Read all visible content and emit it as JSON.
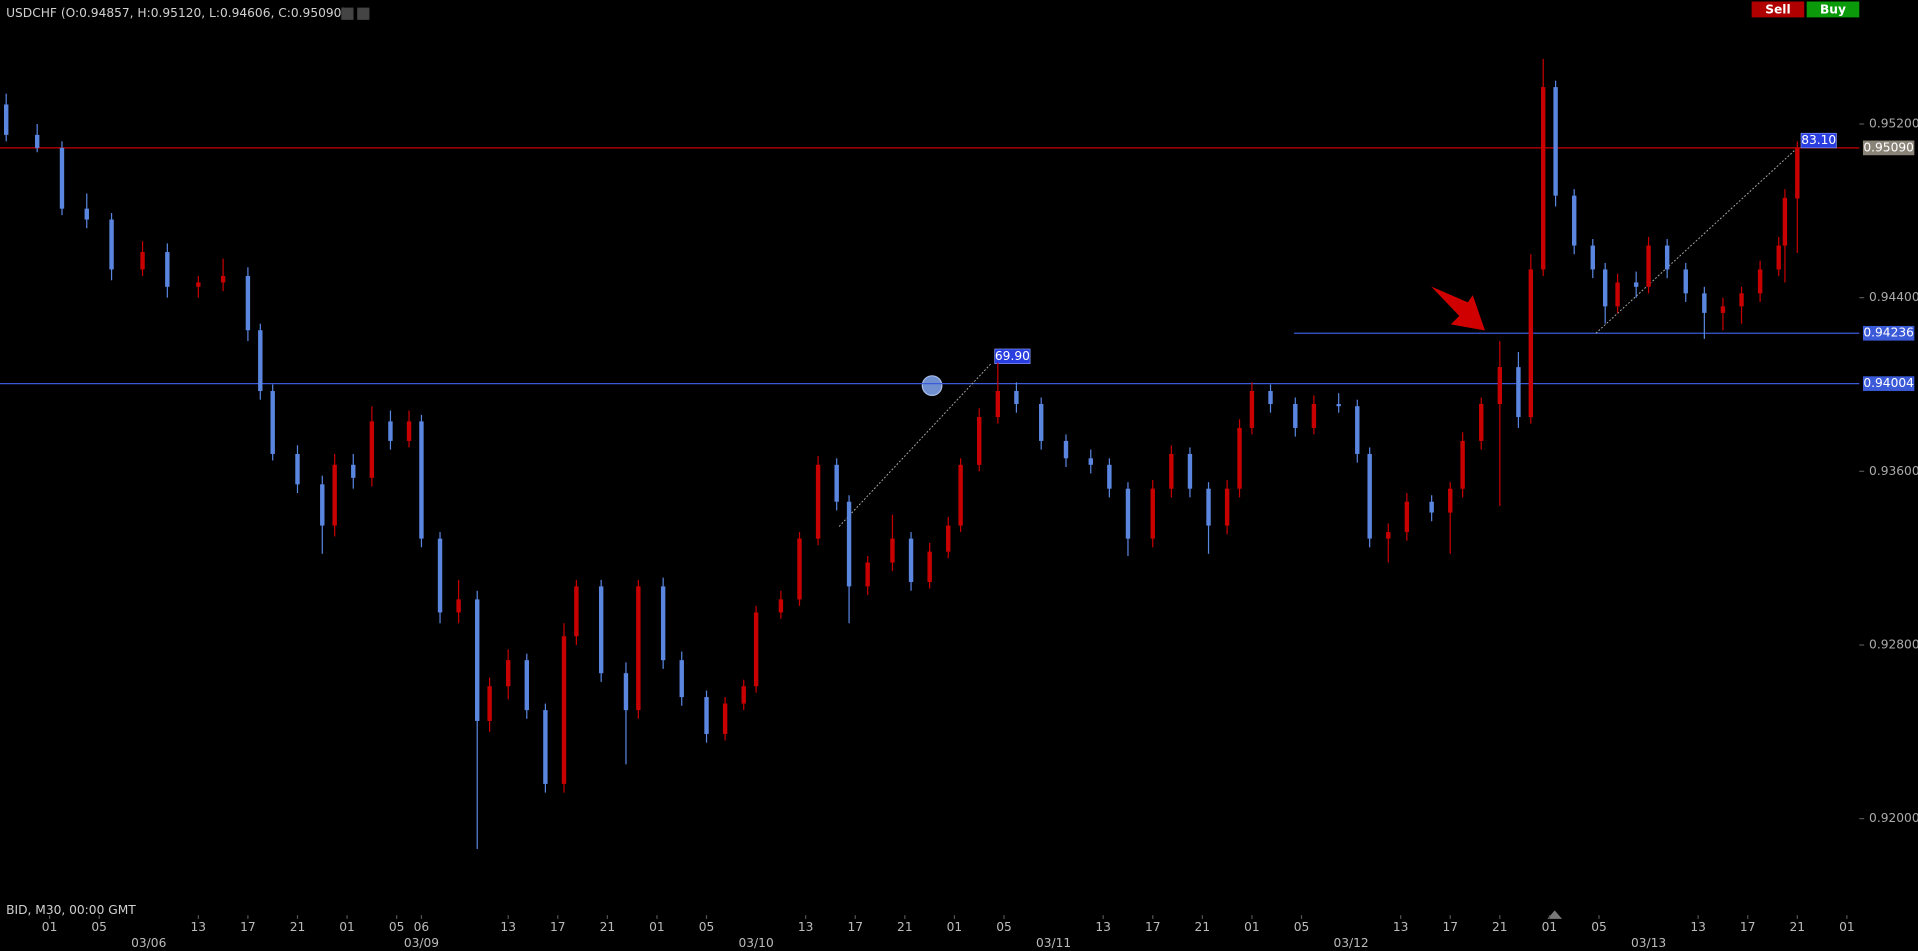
{
  "toolbar": {
    "sell": "Sell",
    "buy": "Buy"
  },
  "chart_data": {
    "type": "candlestick",
    "title": "USDCHF (O:0.94857, H:0.95120, L:0.94606, C:0.95090)",
    "subtitle": "BID, M30, 00:00 GMT",
    "up_color": "#c80000",
    "down_color": "#5a86e0",
    "xlim": [
      0,
      300
    ],
    "ylim": [
      0.916,
      0.9577
    ],
    "yticks": [
      {
        "value": 0.952,
        "label": "0.95200"
      },
      {
        "value": 0.944,
        "label": "0.94400"
      },
      {
        "value": 0.936,
        "label": "0.93600"
      },
      {
        "value": 0.928,
        "label": "0.92800"
      },
      {
        "value": 0.92,
        "label": "0.92000"
      }
    ],
    "xticks": [
      {
        "value": 8,
        "label": "01"
      },
      {
        "value": 16,
        "label": "05"
      },
      {
        "value": 32,
        "label": "13"
      },
      {
        "value": 40,
        "label": "17"
      },
      {
        "value": 48,
        "label": "21"
      },
      {
        "value": 56,
        "label": "01"
      },
      {
        "value": 64,
        "label": "05"
      },
      {
        "value": 68,
        "label": "06"
      },
      {
        "value": 82,
        "label": "13"
      },
      {
        "value": 90,
        "label": "17"
      },
      {
        "value": 98,
        "label": "21"
      },
      {
        "value": 106,
        "label": "01"
      },
      {
        "value": 114,
        "label": "05"
      },
      {
        "value": 130,
        "label": "13"
      },
      {
        "value": 138,
        "label": "17"
      },
      {
        "value": 146,
        "label": "21"
      },
      {
        "value": 154,
        "label": "01"
      },
      {
        "value": 162,
        "label": "05"
      },
      {
        "value": 178,
        "label": "13"
      },
      {
        "value": 186,
        "label": "17"
      },
      {
        "value": 194,
        "label": "21"
      },
      {
        "value": 202,
        "label": "01"
      },
      {
        "value": 210,
        "label": "05"
      },
      {
        "value": 226,
        "label": "13"
      },
      {
        "value": 234,
        "label": "17"
      },
      {
        "value": 242,
        "label": "21"
      },
      {
        "value": 250,
        "label": "01"
      },
      {
        "value": 258,
        "label": "05"
      },
      {
        "value": 274,
        "label": "13"
      },
      {
        "value": 282,
        "label": "17"
      },
      {
        "value": 290,
        "label": "21"
      },
      {
        "value": 298,
        "label": "01"
      }
    ],
    "date_ticks": [
      {
        "value": 24,
        "label": "03/06"
      },
      {
        "value": 68,
        "label": "03/09"
      },
      {
        "value": 122,
        "label": "03/10"
      },
      {
        "value": 170,
        "label": "03/11"
      },
      {
        "value": 218,
        "label": "03/12"
      },
      {
        "value": 266,
        "label": "03/13"
      }
    ],
    "levels": [
      {
        "value": 0.9509,
        "label": "0.95090",
        "color": "#c80000",
        "label_color": "#8a8378"
      },
      {
        "value": 0.94236,
        "label": "0.94236",
        "color": "#3a5ad8",
        "label_color": "#3a5ad8",
        "x_start": 208.8
      },
      {
        "value": 0.94004,
        "label": "0.94004",
        "color": "#3a5ad8",
        "label_color": "#3a5ad8"
      }
    ],
    "trendlines": [
      {
        "x": [
          135.4,
          159.9
        ],
        "y": [
          0.93346,
          0.94096
        ],
        "label": "69.90"
      },
      {
        "x": [
          257.5,
          290
        ],
        "y": [
          0.94236,
          0.9509
        ],
        "label": "83.10"
      }
    ],
    "candles": [
      [
        1,
        0.9529,
        0.9534,
        0.9512,
        0.9515
      ],
      [
        6,
        0.9515,
        0.952,
        0.9507,
        0.9509
      ],
      [
        10,
        0.9509,
        0.9512,
        0.9478,
        0.9481
      ],
      [
        14,
        0.9481,
        0.9488,
        0.9472,
        0.9476
      ],
      [
        18,
        0.9476,
        0.9479,
        0.9448,
        0.9453
      ],
      [
        23,
        0.9453,
        0.9466,
        0.945,
        0.9461
      ],
      [
        27,
        0.9461,
        0.9465,
        0.944,
        0.9445
      ],
      [
        32,
        0.9445,
        0.945,
        0.944,
        0.9447
      ],
      [
        36,
        0.9447,
        0.9458,
        0.9443,
        0.945
      ],
      [
        40,
        0.945,
        0.9454,
        0.942,
        0.9425
      ],
      [
        42,
        0.9425,
        0.9428,
        0.9393,
        0.9397
      ],
      [
        44,
        0.9397,
        0.94,
        0.9365,
        0.9368
      ],
      [
        48,
        0.9368,
        0.9372,
        0.935,
        0.9354
      ],
      [
        52,
        0.9354,
        0.9358,
        0.9322,
        0.9335
      ],
      [
        54,
        0.9335,
        0.9368,
        0.933,
        0.9363
      ],
      [
        57,
        0.9363,
        0.9368,
        0.9352,
        0.9357
      ],
      [
        60,
        0.9357,
        0.939,
        0.9353,
        0.9383
      ],
      [
        63,
        0.9383,
        0.9388,
        0.937,
        0.9374
      ],
      [
        66,
        0.9374,
        0.9388,
        0.9371,
        0.9383
      ],
      [
        68,
        0.9383,
        0.9386,
        0.9325,
        0.9329
      ],
      [
        71,
        0.9329,
        0.9332,
        0.929,
        0.9295
      ],
      [
        74,
        0.9295,
        0.931,
        0.929,
        0.9301
      ],
      [
        77,
        0.9301,
        0.9305,
        0.9186,
        0.9245
      ],
      [
        79,
        0.9245,
        0.9265,
        0.924,
        0.9261
      ],
      [
        82,
        0.9261,
        0.9278,
        0.9255,
        0.9273
      ],
      [
        85,
        0.9273,
        0.9276,
        0.9246,
        0.925
      ],
      [
        88,
        0.925,
        0.9253,
        0.9212,
        0.9216
      ],
      [
        91,
        0.9216,
        0.929,
        0.9212,
        0.9284
      ],
      [
        93,
        0.9284,
        0.931,
        0.928,
        0.9307
      ],
      [
        97,
        0.9307,
        0.931,
        0.9263,
        0.9267
      ],
      [
        101,
        0.9267,
        0.9272,
        0.9225,
        0.925
      ],
      [
        103,
        0.925,
        0.931,
        0.9246,
        0.9307
      ],
      [
        107,
        0.9307,
        0.9311,
        0.9269,
        0.9273
      ],
      [
        110,
        0.9273,
        0.9277,
        0.9252,
        0.9256
      ],
      [
        114,
        0.9256,
        0.9259,
        0.9235,
        0.9239
      ],
      [
        117,
        0.9239,
        0.9256,
        0.9236,
        0.9253
      ],
      [
        120,
        0.9253,
        0.9264,
        0.925,
        0.9261
      ],
      [
        122,
        0.9261,
        0.9298,
        0.9258,
        0.9295
      ],
      [
        126,
        0.9295,
        0.9305,
        0.9292,
        0.9301
      ],
      [
        129,
        0.9301,
        0.9332,
        0.9298,
        0.9329
      ],
      [
        132,
        0.9329,
        0.9367,
        0.9326,
        0.9363
      ],
      [
        135,
        0.9363,
        0.9366,
        0.9342,
        0.9346
      ],
      [
        137,
        0.9346,
        0.9349,
        0.929,
        0.9307
      ],
      [
        140,
        0.9307,
        0.9321,
        0.9303,
        0.9318
      ],
      [
        144,
        0.9318,
        0.934,
        0.9314,
        0.9329
      ],
      [
        147,
        0.9329,
        0.9332,
        0.9305,
        0.9309
      ],
      [
        150,
        0.9309,
        0.9327,
        0.9306,
        0.9323
      ],
      [
        153,
        0.9323,
        0.9339,
        0.932,
        0.9335
      ],
      [
        155,
        0.9335,
        0.9366,
        0.9332,
        0.9363
      ],
      [
        158,
        0.9363,
        0.9389,
        0.936,
        0.9385
      ],
      [
        161,
        0.9385,
        0.941,
        0.9382,
        0.9397
      ],
      [
        164,
        0.9397,
        0.9401,
        0.9387,
        0.9391
      ],
      [
        168,
        0.9391,
        0.9394,
        0.937,
        0.9374
      ],
      [
        172,
        0.9374,
        0.9377,
        0.9362,
        0.9366
      ],
      [
        176,
        0.9366,
        0.937,
        0.9359,
        0.9363
      ],
      [
        179,
        0.9363,
        0.9366,
        0.9348,
        0.9352
      ],
      [
        182,
        0.9352,
        0.9355,
        0.9321,
        0.9329
      ],
      [
        186,
        0.9329,
        0.9356,
        0.9325,
        0.9352
      ],
      [
        189,
        0.9352,
        0.9372,
        0.9348,
        0.9368
      ],
      [
        192,
        0.9368,
        0.9371,
        0.9348,
        0.9352
      ],
      [
        195,
        0.9352,
        0.9355,
        0.9322,
        0.9335
      ],
      [
        198,
        0.9335,
        0.9356,
        0.9331,
        0.9352
      ],
      [
        200,
        0.9352,
        0.9384,
        0.9348,
        0.938
      ],
      [
        202,
        0.938,
        0.9401,
        0.9377,
        0.9397
      ],
      [
        205,
        0.9397,
        0.94,
        0.9387,
        0.9391
      ],
      [
        209,
        0.9391,
        0.9394,
        0.9376,
        0.938
      ],
      [
        212,
        0.938,
        0.9395,
        0.9377,
        0.9391
      ],
      [
        216,
        0.9391,
        0.9396,
        0.9387,
        0.939
      ],
      [
        219,
        0.939,
        0.9393,
        0.9364,
        0.9368
      ],
      [
        221,
        0.9368,
        0.9371,
        0.9325,
        0.9329
      ],
      [
        224,
        0.9329,
        0.9336,
        0.9318,
        0.9332
      ],
      [
        227,
        0.9332,
        0.935,
        0.9328,
        0.9346
      ],
      [
        231,
        0.9346,
        0.9349,
        0.9337,
        0.9341
      ],
      [
        234,
        0.9341,
        0.9355,
        0.9322,
        0.9352
      ],
      [
        236,
        0.9352,
        0.9378,
        0.9348,
        0.9374
      ],
      [
        239,
        0.9374,
        0.9394,
        0.937,
        0.9391
      ],
      [
        242,
        0.9391,
        0.942,
        0.9344,
        0.9408
      ],
      [
        245,
        0.9408,
        0.9415,
        0.938,
        0.9385
      ],
      [
        247,
        0.9385,
        0.946,
        0.9382,
        0.9453
      ],
      [
        249,
        0.9453,
        0.955,
        0.945,
        0.9537
      ],
      [
        251,
        0.9537,
        0.954,
        0.9482,
        0.9487
      ],
      [
        254,
        0.9487,
        0.949,
        0.946,
        0.9464
      ],
      [
        257,
        0.9464,
        0.9467,
        0.9449,
        0.9453
      ],
      [
        259,
        0.9453,
        0.9456,
        0.9428,
        0.9436
      ],
      [
        261,
        0.9436,
        0.9451,
        0.9433,
        0.9447
      ],
      [
        264,
        0.9447,
        0.9452,
        0.944,
        0.9445
      ],
      [
        266,
        0.9445,
        0.9468,
        0.9442,
        0.9464
      ],
      [
        269,
        0.9464,
        0.9467,
        0.9449,
        0.9453
      ],
      [
        272,
        0.9453,
        0.9456,
        0.9438,
        0.9442
      ],
      [
        275,
        0.9442,
        0.9445,
        0.9421,
        0.9433
      ],
      [
        278,
        0.9433,
        0.944,
        0.9425,
        0.9436
      ],
      [
        281,
        0.9436,
        0.9445,
        0.9428,
        0.9442
      ],
      [
        284,
        0.9442,
        0.9457,
        0.9438,
        0.9453
      ],
      [
        287,
        0.9453,
        0.9468,
        0.945,
        0.9464
      ],
      [
        288,
        0.9464,
        0.949,
        0.9447,
        0.9486
      ],
      [
        290,
        0.94857,
        0.9512,
        0.94606,
        0.9509
      ]
    ]
  }
}
